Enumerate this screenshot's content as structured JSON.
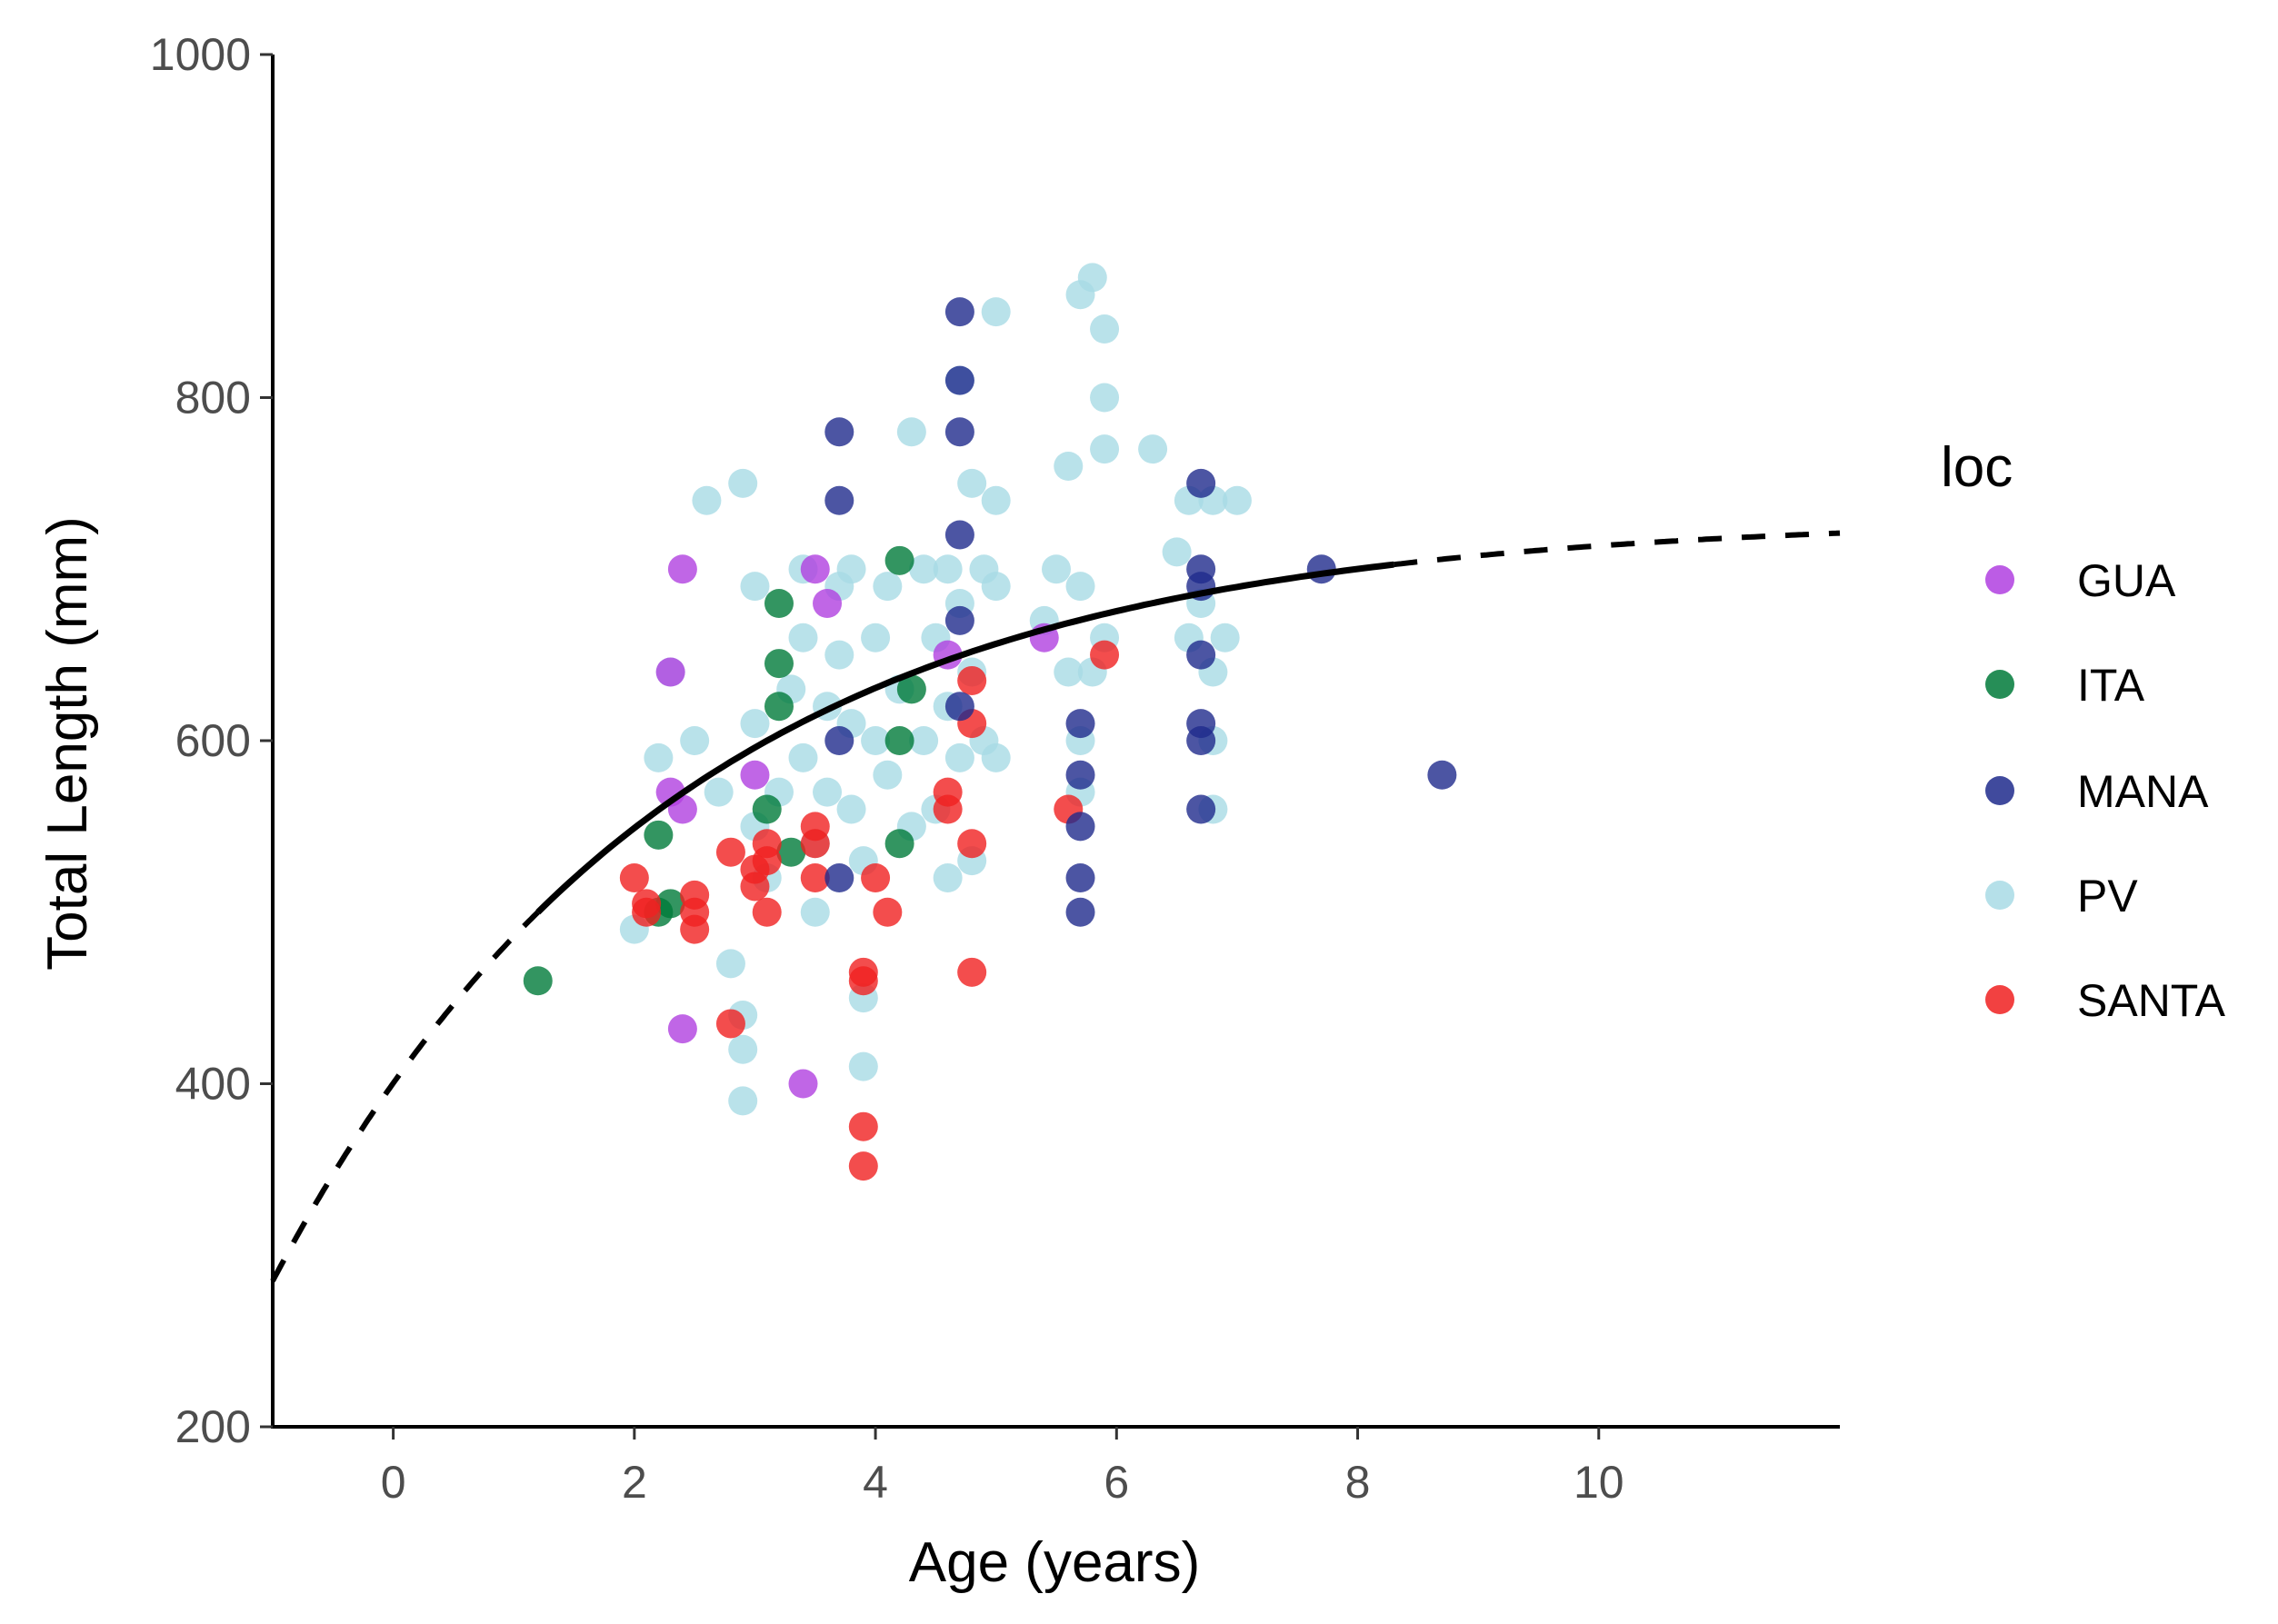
{
  "chart_data": {
    "type": "scatter",
    "xlabel": "Age (years)",
    "ylabel": "Total Length (mm)",
    "xlim": [
      -1,
      12
    ],
    "ylim": [
      200,
      1000
    ],
    "xticks": [
      "0",
      "2",
      "4",
      "6",
      "8",
      "10"
    ],
    "yticks": [
      "200",
      "400",
      "600",
      "800",
      "1000"
    ],
    "grid": false,
    "legend": {
      "title": "loc",
      "position": "right",
      "entries": [
        {
          "name": "GUA",
          "color": "#b040e0"
        },
        {
          "name": "ITA",
          "color": "#007a3a"
        },
        {
          "name": "MANA",
          "color": "#1f2a8c"
        },
        {
          "name": "PV",
          "color": "#a8dbe5"
        },
        {
          "name": "SANTA",
          "color": "#f02020"
        }
      ]
    },
    "series": [
      {
        "name": "GUA",
        "points": [
          [
            2.4,
            700
          ],
          [
            2.3,
            640
          ],
          [
            2.3,
            570
          ],
          [
            2.4,
            560
          ],
          [
            2.4,
            432
          ],
          [
            3.0,
            580
          ],
          [
            3.4,
            400
          ],
          [
            3.5,
            700
          ],
          [
            3.6,
            680
          ],
          [
            4.6,
            650
          ],
          [
            5.4,
            660
          ]
        ]
      },
      {
        "name": "ITA",
        "points": [
          [
            1.2,
            460
          ],
          [
            2.2,
            545
          ],
          [
            2.3,
            505
          ],
          [
            2.2,
            500
          ],
          [
            3.1,
            560
          ],
          [
            3.2,
            645
          ],
          [
            3.2,
            620
          ],
          [
            3.2,
            680
          ],
          [
            3.3,
            535
          ],
          [
            4.2,
            705
          ],
          [
            4.2,
            540
          ],
          [
            4.2,
            600
          ],
          [
            4.3,
            630
          ]
        ]
      },
      {
        "name": "MANA",
        "points": [
          [
            3.7,
            780
          ],
          [
            3.7,
            740
          ],
          [
            3.7,
            520
          ],
          [
            3.7,
            600
          ],
          [
            4.7,
            850
          ],
          [
            4.7,
            810
          ],
          [
            4.7,
            780
          ],
          [
            4.7,
            720
          ],
          [
            4.7,
            670
          ],
          [
            4.7,
            620
          ],
          [
            5.7,
            610
          ],
          [
            5.7,
            580
          ],
          [
            5.7,
            550
          ],
          [
            5.7,
            520
          ],
          [
            5.7,
            500
          ],
          [
            6.7,
            750
          ],
          [
            6.7,
            700
          ],
          [
            6.7,
            690
          ],
          [
            6.7,
            650
          ],
          [
            6.7,
            610
          ],
          [
            6.7,
            600
          ],
          [
            6.7,
            560
          ],
          [
            7.7,
            700
          ],
          [
            8.7,
            580
          ]
        ]
      },
      {
        "name": "PV",
        "points": [
          [
            2.0,
            490
          ],
          [
            2.2,
            590
          ],
          [
            2.3,
            640
          ],
          [
            2.5,
            600
          ],
          [
            2.6,
            740
          ],
          [
            2.7,
            570
          ],
          [
            2.8,
            470
          ],
          [
            2.9,
            750
          ],
          [
            2.9,
            440
          ],
          [
            2.9,
            420
          ],
          [
            2.9,
            390
          ],
          [
            3.0,
            690
          ],
          [
            3.0,
            610
          ],
          [
            3.0,
            550
          ],
          [
            3.1,
            520
          ],
          [
            3.2,
            570
          ],
          [
            3.3,
            630
          ],
          [
            3.4,
            700
          ],
          [
            3.4,
            660
          ],
          [
            3.4,
            590
          ],
          [
            3.5,
            540
          ],
          [
            3.5,
            500
          ],
          [
            3.6,
            620
          ],
          [
            3.6,
            570
          ],
          [
            3.7,
            690
          ],
          [
            3.7,
            650
          ],
          [
            3.8,
            700
          ],
          [
            3.8,
            610
          ],
          [
            3.8,
            560
          ],
          [
            3.9,
            450
          ],
          [
            3.9,
            530
          ],
          [
            3.9,
            410
          ],
          [
            4.0,
            660
          ],
          [
            4.0,
            600
          ],
          [
            4.1,
            690
          ],
          [
            4.1,
            580
          ],
          [
            4.2,
            630
          ],
          [
            4.3,
            780
          ],
          [
            4.3,
            550
          ],
          [
            4.4,
            700
          ],
          [
            4.4,
            600
          ],
          [
            4.5,
            660
          ],
          [
            4.5,
            560
          ],
          [
            4.6,
            700
          ],
          [
            4.6,
            620
          ],
          [
            4.6,
            520
          ],
          [
            4.7,
            810
          ],
          [
            4.7,
            680
          ],
          [
            4.7,
            590
          ],
          [
            4.8,
            750
          ],
          [
            4.8,
            640
          ],
          [
            4.8,
            530
          ],
          [
            4.9,
            700
          ],
          [
            4.9,
            600
          ],
          [
            5.0,
            850
          ],
          [
            5.0,
            740
          ],
          [
            5.0,
            690
          ],
          [
            5.0,
            590
          ],
          [
            5.4,
            670
          ],
          [
            5.5,
            700
          ],
          [
            5.6,
            760
          ],
          [
            5.6,
            640
          ],
          [
            5.7,
            860
          ],
          [
            5.7,
            690
          ],
          [
            5.7,
            600
          ],
          [
            5.7,
            570
          ],
          [
            5.8,
            870
          ],
          [
            5.8,
            640
          ],
          [
            5.9,
            840
          ],
          [
            5.9,
            800
          ],
          [
            5.9,
            770
          ],
          [
            5.9,
            660
          ],
          [
            6.3,
            770
          ],
          [
            6.5,
            710
          ],
          [
            6.6,
            740
          ],
          [
            6.6,
            660
          ],
          [
            6.7,
            680
          ],
          [
            6.8,
            740
          ],
          [
            6.8,
            640
          ],
          [
            6.8,
            600
          ],
          [
            6.8,
            560
          ],
          [
            7.0,
            740
          ],
          [
            6.9,
            660
          ]
        ]
      },
      {
        "name": "SANTA",
        "points": [
          [
            2.0,
            520
          ],
          [
            2.1,
            505
          ],
          [
            2.1,
            500
          ],
          [
            2.5,
            510
          ],
          [
            2.5,
            500
          ],
          [
            2.5,
            490
          ],
          [
            2.8,
            435
          ],
          [
            2.8,
            535
          ],
          [
            3.0,
            525
          ],
          [
            3.0,
            515
          ],
          [
            3.1,
            540
          ],
          [
            3.1,
            530
          ],
          [
            3.1,
            500
          ],
          [
            3.5,
            550
          ],
          [
            3.5,
            540
          ],
          [
            3.5,
            520
          ],
          [
            3.9,
            465
          ],
          [
            3.9,
            460
          ],
          [
            3.9,
            375
          ],
          [
            3.9,
            352
          ],
          [
            4.0,
            520
          ],
          [
            4.1,
            500
          ],
          [
            4.6,
            570
          ],
          [
            4.6,
            560
          ],
          [
            4.8,
            635
          ],
          [
            4.8,
            610
          ],
          [
            4.8,
            540
          ],
          [
            4.8,
            465
          ],
          [
            5.6,
            560
          ],
          [
            5.9,
            650
          ]
        ]
      }
    ],
    "fit_curve": {
      "model": "von Bertalanffy",
      "Linf": 730,
      "k": 0.3,
      "t0": -2.65,
      "solid_range": [
        1.2,
        8.3
      ],
      "dashed_ranges": [
        [
          -1,
          1.2
        ],
        [
          8.3,
          12
        ]
      ]
    }
  }
}
